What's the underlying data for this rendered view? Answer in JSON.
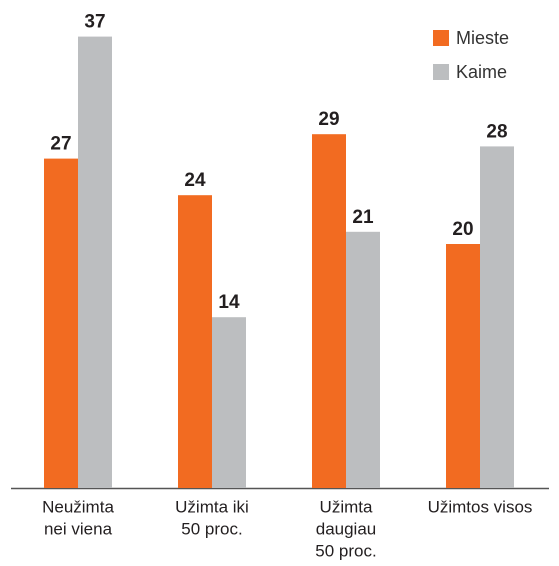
{
  "chart_data": {
    "type": "bar",
    "categories": [
      [
        "Neužimta",
        "nei viena"
      ],
      [
        "Užimta iki",
        "50 proc."
      ],
      [
        "Užimta",
        "daugiau",
        "50 proc."
      ],
      [
        "Užimtos visos"
      ]
    ],
    "series": [
      {
        "name": "Mieste",
        "color": "#f26b21",
        "values": [
          27,
          24,
          29,
          20
        ]
      },
      {
        "name": "Kaime",
        "color": "#bcbec0",
        "values": [
          37,
          14,
          21,
          28
        ]
      }
    ],
    "ylim": [
      0,
      40
    ],
    "legend": "top-right"
  }
}
